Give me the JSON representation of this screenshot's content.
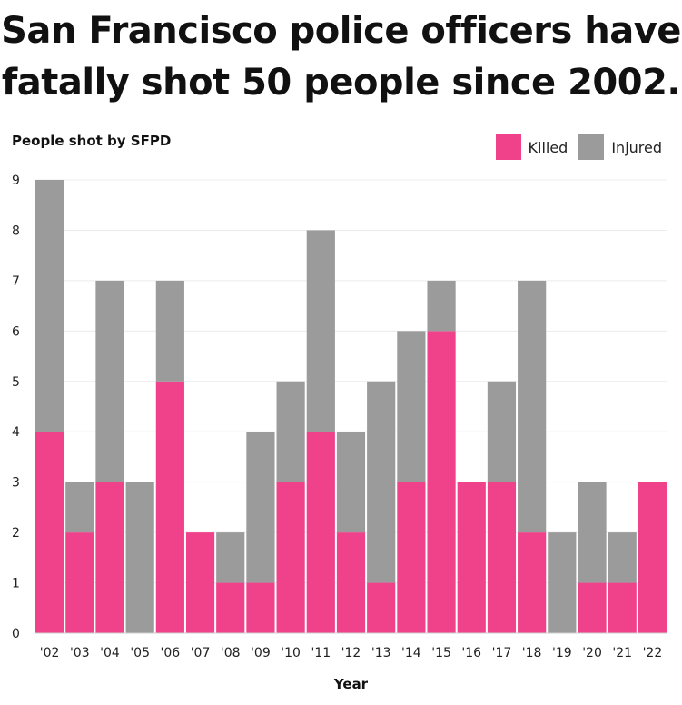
{
  "header": {
    "title_line1": "San Francisco police officers have",
    "title_line2": "fatally shot 50 people since 2002."
  },
  "chart_data": {
    "type": "bar",
    "stacked": true,
    "subtitle": "People shot by SFPD",
    "xlabel": "Year",
    "ylabel": "",
    "ylim": [
      0,
      9
    ],
    "yticks": [
      0,
      1,
      2,
      3,
      4,
      5,
      6,
      7,
      8,
      9
    ],
    "grid": true,
    "legend_position": "top-right",
    "categories": [
      "'02",
      "'03",
      "'04",
      "'05",
      "'06",
      "'07",
      "'08",
      "'09",
      "'10",
      "'11",
      "'12",
      "'13",
      "'14",
      "'15",
      "'16",
      "'17",
      "'18",
      "'19",
      "'20",
      "'21",
      "'22"
    ],
    "series": [
      {
        "name": "Killed",
        "color": "#f0428a",
        "values": [
          4,
          2,
          3,
          0,
          5,
          2,
          1,
          1,
          3,
          4,
          2,
          1,
          3,
          6,
          3,
          3,
          2,
          0,
          1,
          1,
          3
        ]
      },
      {
        "name": "Injured",
        "color": "#9b9b9b",
        "values": [
          5,
          1,
          4,
          3,
          2,
          0,
          1,
          3,
          2,
          4,
          2,
          4,
          3,
          1,
          0,
          2,
          5,
          2,
          2,
          1,
          0
        ]
      }
    ]
  }
}
